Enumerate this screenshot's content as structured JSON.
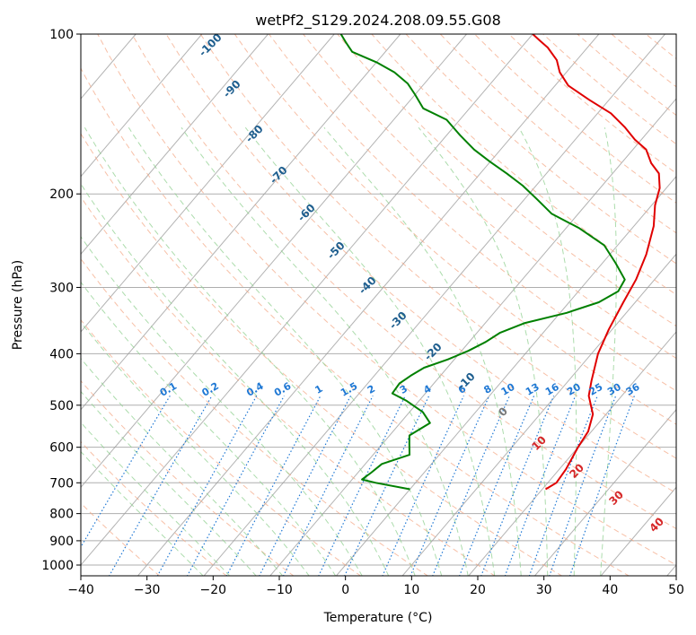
{
  "chart_data": {
    "type": "line",
    "title": "wetPf2_S129.2024.208.09.55.G08",
    "xlabel": "Temperature (°C)",
    "ylabel": "Pressure (hPa)",
    "xlim": [
      -40,
      50
    ],
    "ylim": [
      1050,
      100
    ],
    "y_scale": "log",
    "skew": true,
    "grid": true,
    "x_ticks": [
      -40,
      -30,
      -20,
      -10,
      0,
      10,
      20,
      30,
      40,
      50
    ],
    "x_tick_labels": [
      "−40",
      "−30",
      "−20",
      "−10",
      "0",
      "10",
      "20",
      "30",
      "40",
      "50"
    ],
    "y_ticks": [
      100,
      200,
      300,
      400,
      500,
      600,
      700,
      800,
      900,
      1000
    ],
    "y_tick_labels": [
      "100",
      "200",
      "300",
      "400",
      "500",
      "600",
      "700",
      "800",
      "900",
      "1000"
    ],
    "colors": {
      "temperature": "#e00000",
      "dewpoint": "#008000",
      "dry_adiabat": "#f4a582",
      "moist_adiabat": "#90d090",
      "mixing_ratio": "#1f78d4",
      "isotherm": "#9a9a9a",
      "isobar": "#9a9a9a"
    },
    "series": [
      {
        "points": [
          [
            20.5,
            720
          ],
          [
            21.3,
            700
          ],
          [
            21.0,
            660
          ],
          [
            20.0,
            600
          ],
          [
            19.5,
            560
          ],
          [
            18.0,
            520
          ],
          [
            15.0,
            480
          ],
          [
            13.5,
            450
          ],
          [
            11.0,
            400
          ],
          [
            9.5,
            360
          ],
          [
            8.2,
            320
          ],
          [
            7.2,
            290
          ],
          [
            5.5,
            260
          ],
          [
            3.0,
            230
          ],
          [
            0.5,
            210
          ],
          [
            -1.0,
            195
          ],
          [
            -3.0,
            183
          ],
          [
            -5.5,
            175
          ],
          [
            -8.0,
            165
          ],
          [
            -11.0,
            158
          ],
          [
            -14.0,
            150
          ],
          [
            -18.0,
            141
          ],
          [
            -23.0,
            133
          ],
          [
            -28.0,
            125
          ],
          [
            -31.0,
            118
          ],
          [
            -33.0,
            112
          ],
          [
            -36.0,
            106
          ],
          [
            -38.0,
            103
          ],
          [
            -40.0,
            100
          ]
        ]
      },
      {
        "points": [
          [
            0.0,
            720
          ],
          [
            -6.0,
            700
          ],
          [
            -8.5,
            690
          ],
          [
            -8.0,
            670
          ],
          [
            -7.5,
            645
          ],
          [
            -4.5,
            620
          ],
          [
            -6.0,
            590
          ],
          [
            -7.0,
            570
          ],
          [
            -5.5,
            540
          ],
          [
            -8.0,
            515
          ],
          [
            -12.0,
            490
          ],
          [
            -15.0,
            475
          ],
          [
            -15.2,
            455
          ],
          [
            -14.5,
            440
          ],
          [
            -13.5,
            425
          ],
          [
            -11.0,
            410
          ],
          [
            -9.0,
            395
          ],
          [
            -7.5,
            380
          ],
          [
            -6.5,
            365
          ],
          [
            -4.0,
            350
          ],
          [
            1.0,
            335
          ],
          [
            4.5,
            320
          ],
          [
            6.0,
            305
          ],
          [
            5.5,
            290
          ],
          [
            2.0,
            270
          ],
          [
            -2.0,
            250
          ],
          [
            -8.0,
            232
          ],
          [
            -14.0,
            218
          ],
          [
            -18.0,
            205
          ],
          [
            -22.0,
            193
          ],
          [
            -26.0,
            183
          ],
          [
            -30.0,
            174
          ],
          [
            -34.0,
            165
          ],
          [
            -38.0,
            155
          ],
          [
            -42.0,
            145
          ],
          [
            -47.0,
            138
          ],
          [
            -50.0,
            130
          ],
          [
            -52.5,
            124
          ],
          [
            -56.0,
            118
          ],
          [
            -60.0,
            113
          ],
          [
            -65.0,
            108
          ],
          [
            -67.0,
            104
          ],
          [
            -69.0,
            100
          ]
        ]
      }
    ],
    "dry_adiabat_labels": [],
    "moist_adiabat_labels": [
      {
        "text": "-100",
        "value": -100
      },
      {
        "text": "-90",
        "value": -90
      },
      {
        "text": "-80",
        "value": -80
      },
      {
        "text": "-70",
        "value": -70
      },
      {
        "text": "-60",
        "value": -60
      },
      {
        "text": "-50",
        "value": -50
      },
      {
        "text": "-40",
        "value": -40
      },
      {
        "text": "-30",
        "value": -30
      },
      {
        "text": "-20",
        "value": -20
      },
      {
        "text": "-10",
        "value": -10
      },
      {
        "text": "0",
        "value": 0
      },
      {
        "text": "10",
        "value": 10
      },
      {
        "text": "20",
        "value": 20
      },
      {
        "text": "30",
        "value": 30
      },
      {
        "text": "40",
        "value": 40
      }
    ],
    "mixing_ratio_labels": [
      "0.1",
      "0.2",
      "0.4",
      "0.6",
      "1",
      "1.5",
      "2",
      "3",
      "4",
      "6",
      "8",
      "10",
      "13",
      "16",
      "20",
      "25",
      "30",
      "36"
    ]
  }
}
